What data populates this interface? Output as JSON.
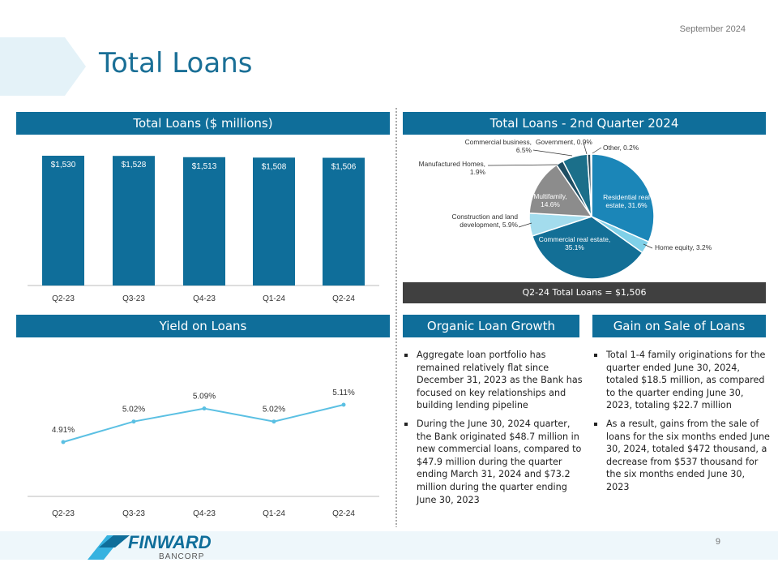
{
  "header": {
    "date": "September  2024",
    "title": "Total Loans",
    "page": "9"
  },
  "logo": {
    "name": "FINWARD",
    "sub": "BANCORP"
  },
  "chart_data": [
    {
      "type": "bar",
      "title": "Total Loans ($ millions)",
      "categories": [
        "Q2-23",
        "Q3-23",
        "Q4-23",
        "Q1-24",
        "Q2-24"
      ],
      "values": [
        1530,
        1528,
        1513,
        1508,
        1506
      ],
      "value_labels": [
        "$1,530",
        "$1,528",
        "$1,513",
        "$1,508",
        "$1,506"
      ],
      "color": "#0f6e9a"
    },
    {
      "type": "pie",
      "title": "Total Loans - 2nd Quarter 2024",
      "values": [
        31.6,
        3.2,
        35.1,
        5.9,
        14.6,
        1.9,
        6.5,
        0.9,
        0.2
      ],
      "value_labels": [
        "Residential real estate, 31.6%",
        "Home equity, 3.2%",
        "Commercial real estate, 35.1%",
        "Construction and land development, 5.9%",
        "Multifamily, 14.6%",
        "Manufactured Homes, 1.9%",
        "Commercial business, 6.5%",
        "Government, 0.9%",
        "Other, 0.2%"
      ],
      "colors": [
        "#1b86b8",
        "#7fd0e8",
        "#136f96",
        "#a3dced",
        "#8c8c8c",
        "#1f4e63",
        "#1b6f8a",
        "#2a4a5a",
        "#d9d9d9"
      ],
      "annotation": "Q2-24 Total Loans = $1,506"
    },
    {
      "type": "line",
      "title": "Yield on Loans",
      "categories": [
        "Q2-23",
        "Q3-23",
        "Q4-23",
        "Q1-24",
        "Q2-24"
      ],
      "values": [
        4.91,
        5.02,
        5.09,
        5.02,
        5.11
      ],
      "value_labels": [
        "4.91%",
        "5.02%",
        "5.09%",
        "5.02%",
        "5.11%"
      ],
      "color": "#5bc0e3"
    }
  ],
  "organic": {
    "title": "Organic Loan Growth",
    "bullets": [
      "Aggregate loan portfolio has remained relatively flat since December 31, 2023 as the Bank has focused on key relationships and building lending pipeline",
      "During the June 30, 2024 quarter, the Bank originated $48.7 million in new commercial loans, compared to $47.9 million during the quarter ending March 31, 2024 and $73.2 million during the quarter ending June 30, 2023"
    ]
  },
  "gain": {
    "title": "Gain on Sale of Loans",
    "bullets": [
      "Total 1-4 family originations for the quarter ended June 30, 2024, totaled $18.5 million, as compared to the quarter ending June 30, 2023, totaling $22.7 million",
      "As a result, gains from the sale of loans for the six months ended June 30, 2024, totaled $472 thousand, a decrease from $537 thousand for the six months ended June 30, 2023"
    ]
  }
}
